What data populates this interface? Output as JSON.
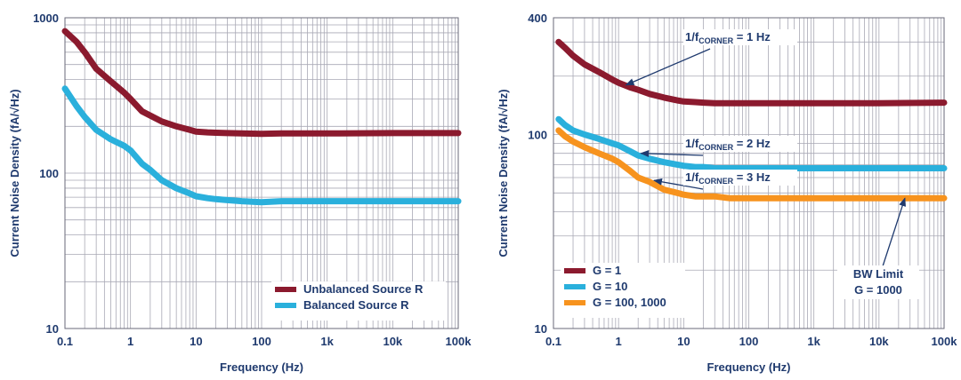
{
  "colors": {
    "unbalanced": "#8b1a2e",
    "balanced": "#2ab0dc",
    "g100": "#f7931e",
    "text": "#1f3a6e"
  },
  "chart_data": [
    {
      "type": "line",
      "xscale": "log",
      "yscale": "log",
      "xlim": [
        0.1,
        100000
      ],
      "ylim": [
        10,
        1000
      ],
      "xlabel": "Frequency (Hz)",
      "ylabel": "Current Noise Density (fA/√Hz)",
      "xticks": [
        "0.1",
        "1",
        "10",
        "100",
        "1k",
        "10k",
        "100k"
      ],
      "yticks": [
        "10",
        "100",
        "1000"
      ],
      "legend_position": "bottom-right",
      "series": [
        {
          "name": "Unbalanced Source R",
          "color": "#8b1a2e",
          "x": [
            0.1,
            0.15,
            0.2,
            0.3,
            0.5,
            0.8,
            1,
            1.5,
            2,
            3,
            5,
            8,
            10,
            15,
            20,
            30,
            50,
            100,
            200,
            1000,
            10000,
            100000
          ],
          "y": [
            820,
            700,
            600,
            470,
            390,
            330,
            300,
            250,
            235,
            215,
            200,
            190,
            185,
            183,
            182,
            181,
            180,
            179,
            180,
            180,
            181,
            181
          ]
        },
        {
          "name": "Balanced Source R",
          "color": "#2ab0dc",
          "x": [
            0.1,
            0.15,
            0.2,
            0.3,
            0.5,
            0.8,
            1,
            1.5,
            2,
            3,
            5,
            8,
            10,
            15,
            20,
            30,
            50,
            100,
            200,
            1000,
            10000,
            100000
          ],
          "y": [
            350,
            270,
            230,
            190,
            165,
            150,
            140,
            115,
            105,
            90,
            80,
            74,
            71,
            69,
            68,
            67,
            66,
            65,
            66,
            66,
            66,
            66
          ]
        }
      ]
    },
    {
      "type": "line",
      "xscale": "log",
      "yscale": "log",
      "xlim": [
        0.1,
        100000
      ],
      "ylim": [
        10,
        400
      ],
      "xlabel": "Frequency (Hz)",
      "ylabel": "Current Noise Density (fA/√Hz)",
      "xticks": [
        "0.1",
        "1",
        "10",
        "100",
        "1k",
        "10k",
        "100k"
      ],
      "yticks": [
        "10",
        "100",
        "400"
      ],
      "legend_position": "bottom-left",
      "series": [
        {
          "name": "G = 1",
          "color": "#8b1a2e",
          "x": [
            0.12,
            0.15,
            0.2,
            0.3,
            0.5,
            0.8,
            1,
            1.5,
            2,
            3,
            5,
            8,
            10,
            15,
            20,
            30,
            50,
            100,
            200,
            1000,
            10000,
            100000
          ],
          "y": [
            300,
            280,
            255,
            230,
            210,
            192,
            185,
            175,
            170,
            162,
            155,
            150,
            148,
            147,
            146,
            145,
            145,
            145,
            145,
            145,
            145,
            146
          ]
        },
        {
          "name": "G = 10",
          "color": "#2ab0dc",
          "x": [
            0.12,
            0.15,
            0.2,
            0.3,
            0.5,
            0.8,
            1,
            1.5,
            2,
            3,
            5,
            8,
            10,
            15,
            20,
            30,
            50,
            100,
            200,
            1000,
            10000,
            100000
          ],
          "y": [
            120,
            112,
            105,
            100,
            95,
            90,
            88,
            82,
            78,
            75,
            72,
            70,
            69,
            68,
            68,
            67,
            67,
            67,
            67,
            67,
            67,
            67
          ]
        },
        {
          "name": "G = 100, 1000",
          "color": "#f7931e",
          "x": [
            0.12,
            0.15,
            0.2,
            0.3,
            0.5,
            0.8,
            1,
            1.5,
            2,
            3,
            5,
            8,
            10,
            15,
            20,
            30,
            50,
            100,
            200,
            1000,
            10000,
            100000
          ],
          "y": [
            105,
            98,
            92,
            86,
            80,
            75,
            72,
            65,
            60,
            57,
            52,
            50,
            49,
            48,
            48,
            48,
            47,
            47,
            47,
            47,
            47,
            47
          ]
        }
      ],
      "annotations": [
        {
          "label_main": "1/f",
          "label_sub": "CORNER",
          "label_tail": " = 1 Hz",
          "points_to_x": 1.3,
          "points_to_y": 180
        },
        {
          "label_main": "1/f",
          "label_sub": "CORNER",
          "label_tail": " = 2 Hz",
          "points_to_x": 2.2,
          "points_to_y": 80
        },
        {
          "label_main": "1/f",
          "label_sub": "CORNER",
          "label_tail": " = 3 Hz",
          "points_to_x": 3.5,
          "points_to_y": 58
        },
        {
          "label_main": "BW Limit",
          "label_line2": "G = 1000",
          "points_to_x": 25000,
          "points_to_y": 47
        }
      ]
    }
  ]
}
